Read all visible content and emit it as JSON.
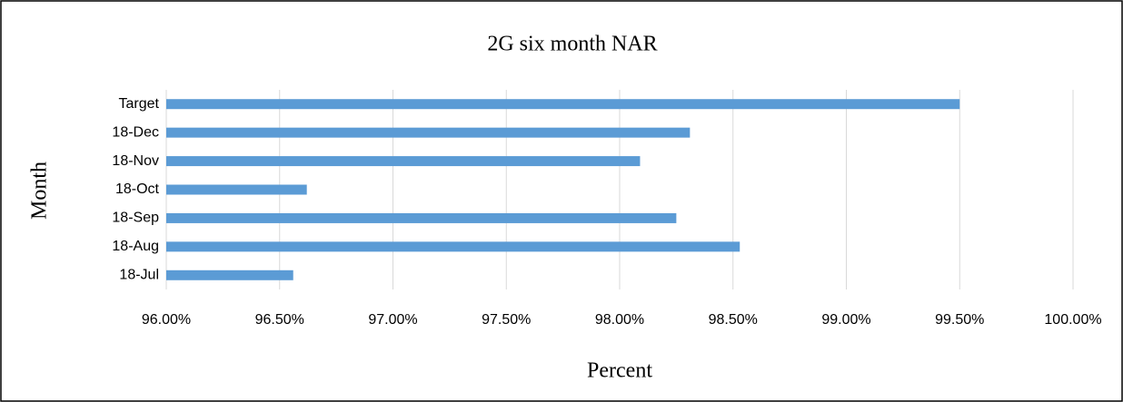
{
  "chart_data": {
    "type": "bar",
    "orientation": "horizontal",
    "title": "2G six month NAR",
    "x_label": "Percent",
    "y_label": "Month",
    "categories": [
      "18-Jul",
      "18-Aug",
      "18-Sep",
      "18-Oct",
      "18-Nov",
      "18-Dec",
      "Target"
    ],
    "values": [
      96.56,
      98.53,
      98.25,
      96.62,
      98.09,
      98.31,
      99.5
    ],
    "color": "#5b9bd5",
    "xlim": [
      96,
      100
    ],
    "xticks": [
      {
        "value": 96,
        "label": "96.00%"
      },
      {
        "value": 96.5,
        "label": "96.50%"
      },
      {
        "value": 97,
        "label": "97.00%"
      },
      {
        "value": 97.5,
        "label": "97.50%"
      },
      {
        "value": 98,
        "label": "98.00%"
      },
      {
        "value": 98.5,
        "label": "98.50%"
      },
      {
        "value": 99,
        "label": "99.00%"
      },
      {
        "value": 99.5,
        "label": "99.50%"
      },
      {
        "value": 100,
        "label": "100.00%"
      }
    ],
    "grid": true
  }
}
